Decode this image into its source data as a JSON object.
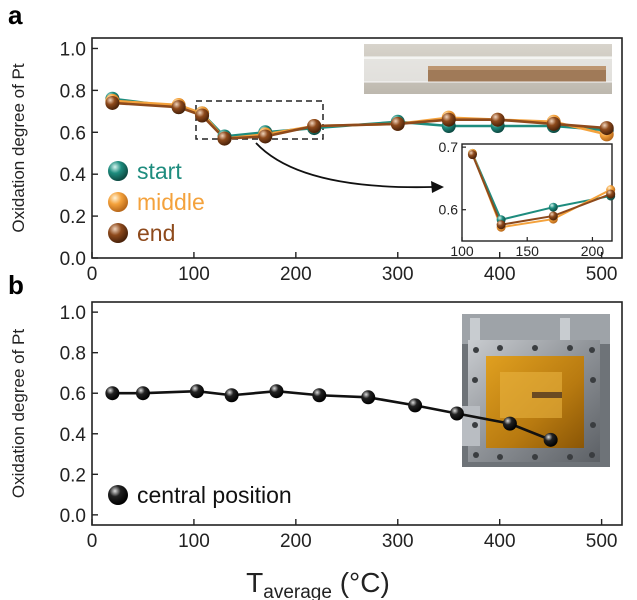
{
  "figure": {
    "panel_a_letter": "a",
    "panel_b_letter": "b",
    "x_label_main": "T",
    "x_label_sub": "average",
    "x_label_unit": " (°C)",
    "colors": {
      "start": "#1e8c7e",
      "middle": "#f4a23c",
      "end": "#8e4a1c",
      "central": "#111111"
    }
  },
  "chart_data": [
    {
      "type": "line",
      "panel": "a",
      "ylabel": "Oxidation degree of Pt",
      "xlim": [
        0,
        520
      ],
      "ylim": [
        0,
        1.05
      ],
      "xticks": [
        0,
        100,
        200,
        300,
        400,
        500
      ],
      "yticks": [
        0.0,
        0.2,
        0.4,
        0.6,
        0.8,
        1.0
      ],
      "x": [
        20,
        85,
        108,
        130,
        170,
        218,
        300,
        350,
        398,
        453,
        505
      ],
      "series": [
        {
          "name": "start",
          "values": [
            0.76,
            0.72,
            0.69,
            0.58,
            0.6,
            0.62,
            0.65,
            0.63,
            0.63,
            0.63,
            0.61
          ]
        },
        {
          "name": "middle",
          "values": [
            0.75,
            0.73,
            0.69,
            0.57,
            0.59,
            0.63,
            0.64,
            0.67,
            0.66,
            0.65,
            0.59
          ]
        },
        {
          "name": "end",
          "values": [
            0.74,
            0.72,
            0.68,
            0.57,
            0.58,
            0.63,
            0.64,
            0.66,
            0.66,
            0.64,
            0.62
          ]
        }
      ],
      "legend_position": "left",
      "inset": {
        "xlim": [
          100,
          215
        ],
        "ylim": [
          0.55,
          0.705
        ],
        "xticks": [
          100,
          150,
          200
        ],
        "yticks": [
          0.6,
          0.7
        ],
        "x": [
          108,
          130,
          170,
          214
        ],
        "series": [
          {
            "name": "start",
            "values": [
              0.69,
              0.584,
              0.604,
              0.622
            ]
          },
          {
            "name": "middle",
            "values": [
              0.69,
              0.572,
              0.585,
              0.632
            ]
          },
          {
            "name": "end",
            "values": [
              0.688,
              0.576,
              0.59,
              0.625
            ]
          }
        ]
      }
    },
    {
      "type": "line",
      "panel": "b",
      "ylabel": "Oxidation degree of Pt",
      "xlim": [
        0,
        520
      ],
      "ylim": [
        -0.05,
        1.05
      ],
      "xticks": [
        0,
        100,
        200,
        300,
        400,
        500
      ],
      "yticks": [
        0.0,
        0.2,
        0.4,
        0.6,
        0.8,
        1.0
      ],
      "x": [
        20,
        50,
        103,
        137,
        181,
        223,
        271,
        317,
        358,
        410,
        450
      ],
      "series": [
        {
          "name": "central position",
          "values": [
            0.6,
            0.6,
            0.61,
            0.59,
            0.61,
            0.59,
            0.58,
            0.54,
            0.5,
            0.45,
            0.37
          ]
        }
      ],
      "legend_position": "bottom-left"
    }
  ]
}
